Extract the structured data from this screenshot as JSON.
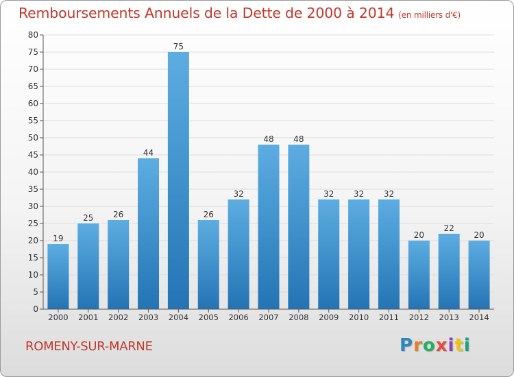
{
  "colors": {
    "title": "#c0392b",
    "bar_light": "#5dade2",
    "bar_dark": "#2474b5",
    "axis": "#555555",
    "grid": "#dddddd"
  },
  "header": {
    "title": "Remboursements Annuels de la Dette de 2000 à 2014",
    "unit": "(en milliers d'€)"
  },
  "footer": {
    "commune": "ROMENY-SUR-MARNE",
    "logo": "Proxiti"
  },
  "chart_data": {
    "type": "bar",
    "title": "Remboursements Annuels de la Dette de 2000 à 2014",
    "subtitle": "(en milliers d'€)",
    "xlabel": "",
    "ylabel": "",
    "categories": [
      "2000",
      "2001",
      "2002",
      "2003",
      "2004",
      "2005",
      "2006",
      "2007",
      "2008",
      "2009",
      "2010",
      "2011",
      "2012",
      "2013",
      "2014"
    ],
    "values": [
      19,
      25,
      26,
      44,
      75,
      26,
      32,
      48,
      48,
      32,
      32,
      32,
      20,
      22,
      20
    ],
    "ylim": [
      0,
      80
    ],
    "yticks": [
      0,
      5,
      10,
      15,
      20,
      25,
      30,
      35,
      40,
      45,
      50,
      55,
      60,
      65,
      70,
      75,
      80
    ],
    "grid": true,
    "legend": "none",
    "data_labels": true
  }
}
